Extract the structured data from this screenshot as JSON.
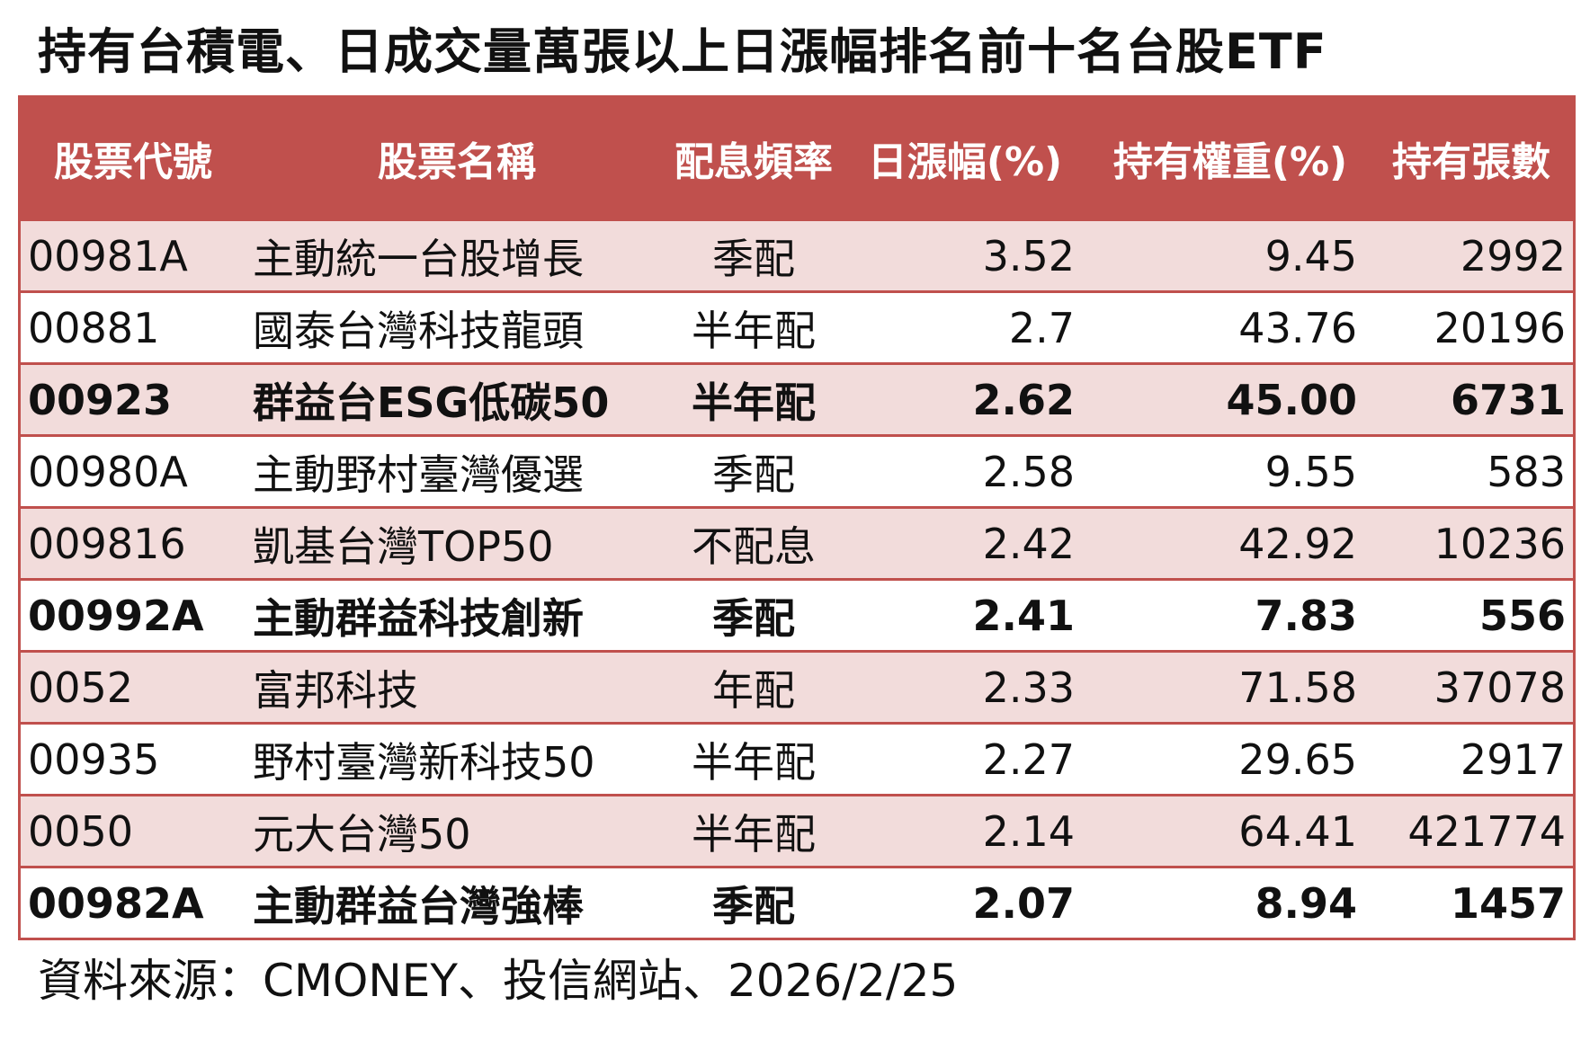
{
  "title": "持有台積電、日成交量萬張以上日漲幅排名前十名台股ETF",
  "colors": {
    "header_bg": "#c0504d",
    "header_text": "#ffffff",
    "row_alt_bg": "#f2dcdb",
    "row_bg": "#ffffff"
  },
  "table": {
    "headers": [
      "股票代號",
      "股票名稱",
      "配息頻率",
      "日漲幅(%)",
      "持有權重(%)",
      "持有張數"
    ],
    "rows": [
      {
        "code": "00981A",
        "name": "主動統一台股增長",
        "freq": "季配",
        "change": "3.52",
        "weight": "9.45",
        "shares": "2992",
        "bold": false
      },
      {
        "code": "00881",
        "name": "國泰台灣科技龍頭",
        "freq": "半年配",
        "change": "2.7",
        "weight": "43.76",
        "shares": "20196",
        "bold": false
      },
      {
        "code": "00923",
        "name": "群益台ESG低碳50",
        "freq": "半年配",
        "change": "2.62",
        "weight": "45.00",
        "shares": "6731",
        "bold": true
      },
      {
        "code": "00980A",
        "name": "主動野村臺灣優選",
        "freq": "季配",
        "change": "2.58",
        "weight": "9.55",
        "shares": "583",
        "bold": false
      },
      {
        "code": "009816",
        "name": "凱基台灣TOP50",
        "freq": "不配息",
        "change": "2.42",
        "weight": "42.92",
        "shares": "10236",
        "bold": false
      },
      {
        "code": "00992A",
        "name": "主動群益科技創新",
        "freq": "季配",
        "change": "2.41",
        "weight": "7.83",
        "shares": "556",
        "bold": true
      },
      {
        "code": "0052",
        "name": "富邦科技",
        "freq": "年配",
        "change": "2.33",
        "weight": "71.58",
        "shares": "37078",
        "bold": false
      },
      {
        "code": "00935",
        "name": "野村臺灣新科技50",
        "freq": "半年配",
        "change": "2.27",
        "weight": "29.65",
        "shares": "2917",
        "bold": false
      },
      {
        "code": "0050",
        "name": "元大台灣50",
        "freq": "半年配",
        "change": "2.14",
        "weight": "64.41",
        "shares": "421774",
        "bold": false
      },
      {
        "code": "00982A",
        "name": "主動群益台灣強棒",
        "freq": "季配",
        "change": "2.07",
        "weight": "8.94",
        "shares": "1457",
        "bold": true
      }
    ]
  },
  "source": "資料來源：CMONEY、投信網站、2026/2/25"
}
